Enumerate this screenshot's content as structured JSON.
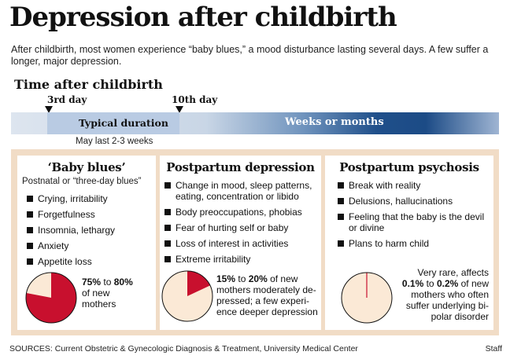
{
  "header": {
    "title": "Depression after childbirth",
    "subtitle": "After childbirth, most women experience “baby blues,” a mood disturbance lasting several days. A few suffer a longer, major depression."
  },
  "timeline": {
    "heading": "Time after childbirth",
    "tick_start": "3rd day",
    "tick_end": "10th day",
    "typical_label": "Typical duration",
    "typical_note": "May last 2-3 weeks",
    "long_label": "Weeks or months",
    "colors": {
      "band_dark": "#1c4b86",
      "band_light": "#b9cbe3"
    }
  },
  "panels": [
    {
      "title": "‘Baby blues’",
      "subtitle": "Postnatal or “three-day blues”",
      "bullets": [
        "Crying, irritability",
        "Forgetfulness",
        "Insomnia, lethargy",
        "Anxiety",
        "Appetite loss"
      ],
      "stat_lines": [
        {
          "pre": "",
          "b1": "75%",
          "mid": " to ",
          "b2": "80%",
          "post": ""
        },
        {
          "pre": "of new",
          "b1": "",
          "mid": "",
          "b2": "",
          "post": ""
        },
        {
          "pre": "mothers",
          "b1": "",
          "mid": "",
          "b2": "",
          "post": ""
        }
      ],
      "pie_fraction": 0.78
    },
    {
      "title": "Postpartum depression",
      "bullets": [
        "Change in mood, sleep patterns, eating, concentration or libido",
        "Body preoccupations, phobias",
        "Fear of hurting self or baby",
        "Loss of interest in activities",
        "Extreme irritability"
      ],
      "stat_lines": [
        {
          "pre": "",
          "b1": "15%",
          "mid": " to ",
          "b2": "20%",
          "post": " of new"
        },
        {
          "pre": "mothers moderately de-",
          "b1": "",
          "mid": "",
          "b2": "",
          "post": ""
        },
        {
          "pre": "pressed; a few experi-",
          "b1": "",
          "mid": "",
          "b2": "",
          "post": ""
        },
        {
          "pre": "ence deeper depression",
          "b1": "",
          "mid": "",
          "b2": "",
          "post": ""
        }
      ],
      "pie_fraction": 0.18
    },
    {
      "title": "Postpartum psychosis",
      "bullets": [
        "Break with reality",
        "Delusions, hallucinations",
        "Feeling that the baby is the devil or divine",
        "Plans to harm child"
      ],
      "stat_lines": [
        {
          "pre": "Very rare, affects",
          "b1": "",
          "mid": "",
          "b2": "",
          "post": ""
        },
        {
          "pre": "",
          "b1": "0.1%",
          "mid": " to ",
          "b2": "0.2%",
          "post": " of new"
        },
        {
          "pre": "mothers who often",
          "b1": "",
          "mid": "",
          "b2": "",
          "post": ""
        },
        {
          "pre": "suffer underlying bi-",
          "b1": "",
          "mid": "",
          "b2": "",
          "post": ""
        },
        {
          "pre": "polar disorder",
          "b1": "",
          "mid": "",
          "b2": "",
          "post": ""
        }
      ],
      "pie_fraction": 0.0015
    }
  ],
  "pie_colors": {
    "filled": "#c8102e",
    "empty": "#fbe9d6",
    "outline": "#111111"
  },
  "footer": {
    "sources": "SOURCES: Current Obstetric & Gynecologic Diagnosis & Treatment, University Medical Center",
    "credit": "Staff"
  }
}
